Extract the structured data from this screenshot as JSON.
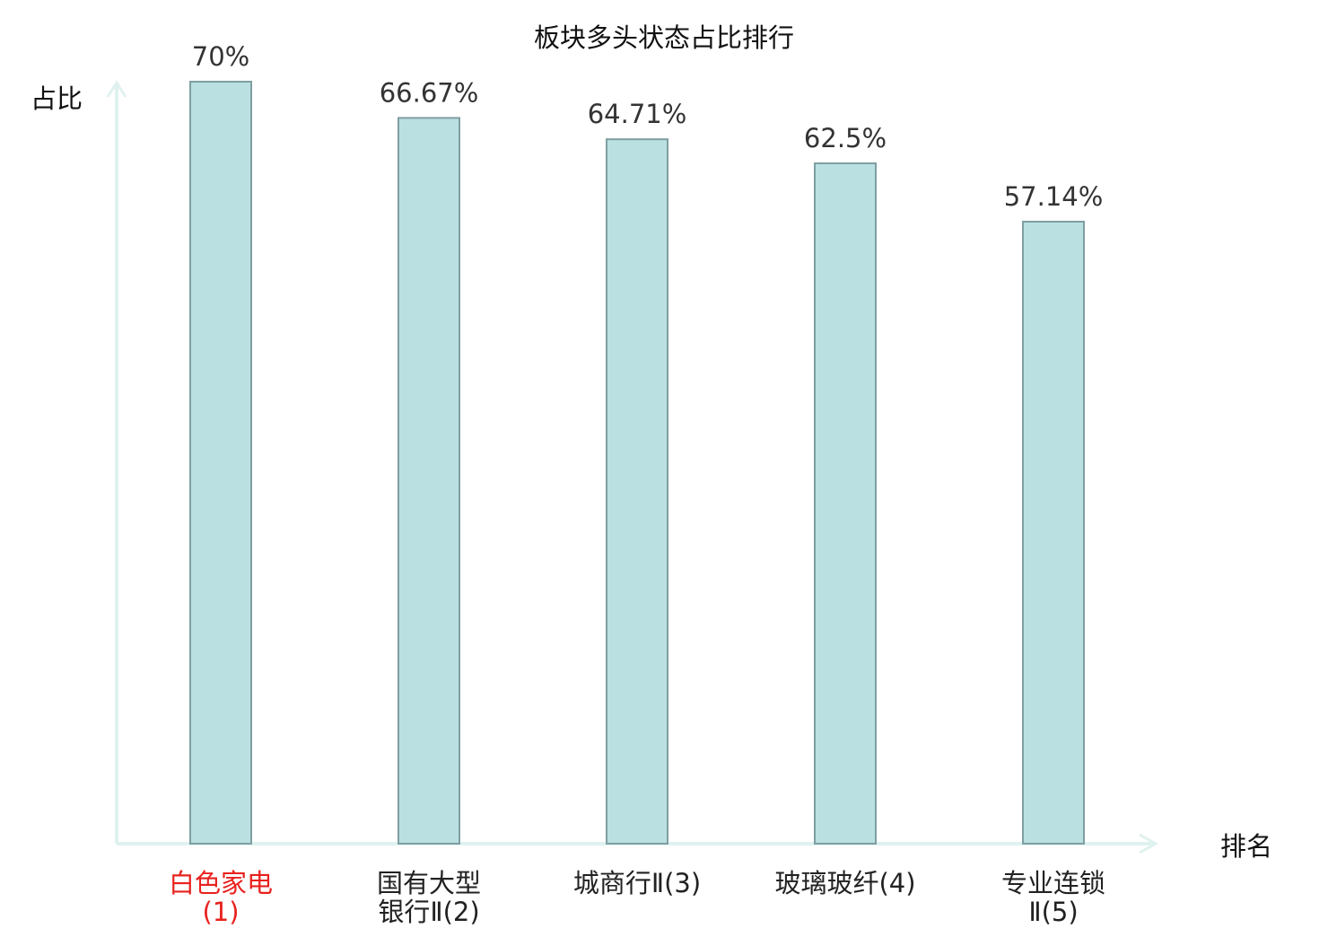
{
  "chart_data": {
    "type": "bar",
    "title": "板块多头状态占比排行",
    "ylabel": "占比",
    "xlabel": "排名",
    "categories": [
      {
        "lines": [
          "白色家电",
          "(1)"
        ],
        "highlight": true
      },
      {
        "lines": [
          "国有大型",
          "银行Ⅱ(2)"
        ],
        "highlight": false
      },
      {
        "lines": [
          "城商行Ⅱ(3)"
        ],
        "highlight": false
      },
      {
        "lines": [
          "玻璃玻纤(4)"
        ],
        "highlight": false
      },
      {
        "lines": [
          "专业连锁",
          "Ⅱ(5)"
        ],
        "highlight": false
      }
    ],
    "values": [
      70,
      66.67,
      64.71,
      62.5,
      57.14
    ],
    "value_labels": [
      "70%",
      "66.67%",
      "64.71%",
      "62.5%",
      "57.14%"
    ],
    "ylim": [
      0,
      70
    ],
    "grid": false,
    "colors": {
      "bar_fill": "#bbe0e2",
      "bar_stroke": "#7f9fa1",
      "axis": "#dff2ef",
      "highlight_text": "#e8211d",
      "text": "#222222",
      "value_text": "#333333"
    }
  }
}
